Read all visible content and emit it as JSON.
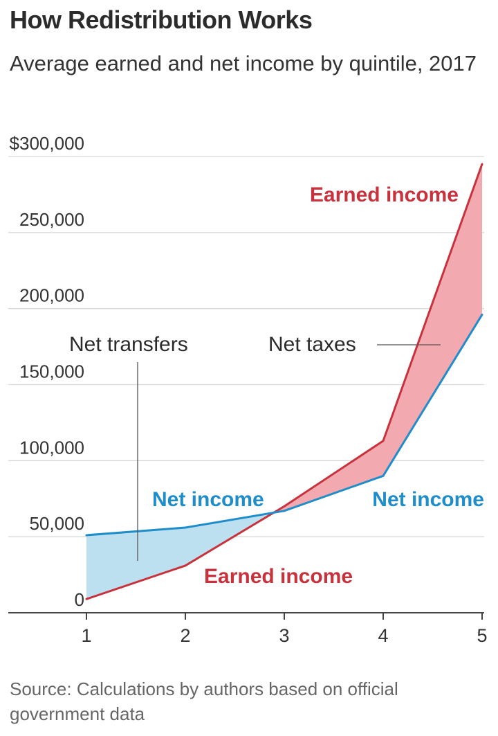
{
  "header": {
    "title": "How Redistribution Works",
    "subtitle": "Average earned and net income by quintile, 2017"
  },
  "footer": {
    "source": "Source: Calculations by authors based on official government data"
  },
  "colors": {
    "earned": "#c8323c",
    "net": "#1f8dc9",
    "net_taxes_fill": "#f2a9b0",
    "net_transfers_fill": "#bde0f0",
    "grid": "#d8d8d8",
    "axis": "#444444"
  },
  "chart_data": {
    "type": "line",
    "x": [
      1,
      2,
      3,
      4,
      5
    ],
    "xticks": [
      "1",
      "2",
      "3",
      "4",
      "5"
    ],
    "ylim": [
      0,
      300000
    ],
    "yticks": [
      0,
      50000,
      100000,
      150000,
      200000,
      250000,
      300000
    ],
    "ytick_labels": [
      "0",
      "50,000",
      "100,000",
      "150,000",
      "200,000",
      "250,000",
      "$300,000"
    ],
    "grid": true,
    "series": [
      {
        "name": "Earned income",
        "color": "#c8323c",
        "values": [
          9000,
          31000,
          70000,
          113000,
          295000
        ]
      },
      {
        "name": "Net income",
        "color": "#1f8dc9",
        "values": [
          51000,
          56000,
          67000,
          90000,
          196000
        ]
      }
    ],
    "annotations": {
      "earned_top": "Earned income",
      "earned_bottom": "Earned income",
      "net_left": "Net income",
      "net_right": "Net income",
      "net_transfers": "Net transfers",
      "net_taxes": "Net taxes"
    }
  }
}
